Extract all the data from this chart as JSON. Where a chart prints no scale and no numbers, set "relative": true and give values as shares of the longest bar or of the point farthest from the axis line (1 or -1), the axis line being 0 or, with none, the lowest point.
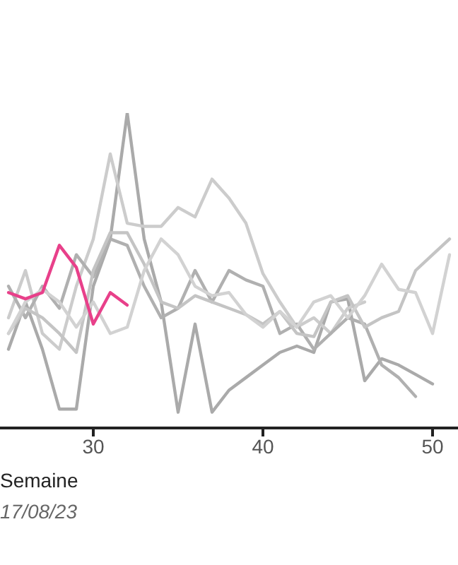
{
  "chart_data": {
    "type": "line",
    "relative": true,
    "xlabel": "Semaine",
    "annotations": [
      "17/08/23"
    ],
    "xlim": [
      24.5,
      51.5
    ],
    "xticks": [
      30,
      40,
      50
    ],
    "marker": "none",
    "x": [
      25,
      26,
      27,
      28,
      29,
      30,
      31,
      32,
      33,
      34,
      35,
      36,
      37,
      38,
      39,
      40,
      41,
      42,
      43,
      44,
      45,
      46,
      47,
      48,
      49,
      50,
      51
    ],
    "series": [
      {
        "color": "#aaaaaa",
        "values": [
          0.25,
          0.4,
          0.25,
          0.06,
          0.06,
          0.45,
          0.6,
          1.0,
          0.6,
          0.4,
          0.05,
          0.33,
          0.05,
          0.12,
          0.16,
          0.2,
          0.24,
          0.26,
          0.24,
          0.4,
          0.41,
          0.15,
          0.22,
          0.2,
          0.17,
          0.14,
          null
        ]
      },
      {
        "color": "#cccccc",
        "values": [
          0.35,
          0.5,
          0.3,
          0.25,
          0.45,
          0.6,
          0.87,
          0.65,
          0.64,
          0.64,
          0.7,
          0.67,
          0.79,
          0.73,
          0.65,
          0.49,
          0.4,
          0.32,
          0.35,
          0.3,
          0.38,
          0.4,
          null,
          null,
          null,
          null,
          null
        ]
      },
      {
        "color": "#b0b0b0",
        "values": [
          0.45,
          0.35,
          0.45,
          0.38,
          0.55,
          0.48,
          0.6,
          0.58,
          0.45,
          0.35,
          0.38,
          0.5,
          0.4,
          0.5,
          0.47,
          0.45,
          0.3,
          0.33,
          0.25,
          0.3,
          0.35,
          0.33,
          0.2,
          0.16,
          0.1,
          null,
          null
        ]
      },
      {
        "color": "#c4c4c4",
        "values": [
          0.3,
          0.38,
          0.35,
          0.3,
          0.24,
          0.5,
          0.62,
          0.62,
          0.52,
          0.4,
          0.38,
          0.42,
          0.4,
          0.38,
          0.36,
          0.33,
          0.37,
          0.3,
          0.29,
          0.4,
          0.42,
          0.32,
          0.35,
          0.37,
          0.5,
          0.55,
          0.6
        ]
      },
      {
        "color": "#d2d2d2",
        "values": [
          0.3,
          0.4,
          0.44,
          0.4,
          0.32,
          0.4,
          0.3,
          0.32,
          0.5,
          0.6,
          0.55,
          0.45,
          0.42,
          0.43,
          0.36,
          0.32,
          0.37,
          0.32,
          0.4,
          0.42,
          0.35,
          0.42,
          0.52,
          0.44,
          0.43,
          0.3,
          0.55
        ]
      },
      {
        "color": "#e8408a",
        "values": [
          0.43,
          0.41,
          0.43,
          0.58,
          0.51,
          0.33,
          0.43,
          0.39,
          null,
          null,
          null,
          null,
          null,
          null,
          null,
          null,
          null,
          null,
          null,
          null,
          null,
          null,
          null,
          null,
          null,
          null,
          null
        ]
      }
    ]
  }
}
